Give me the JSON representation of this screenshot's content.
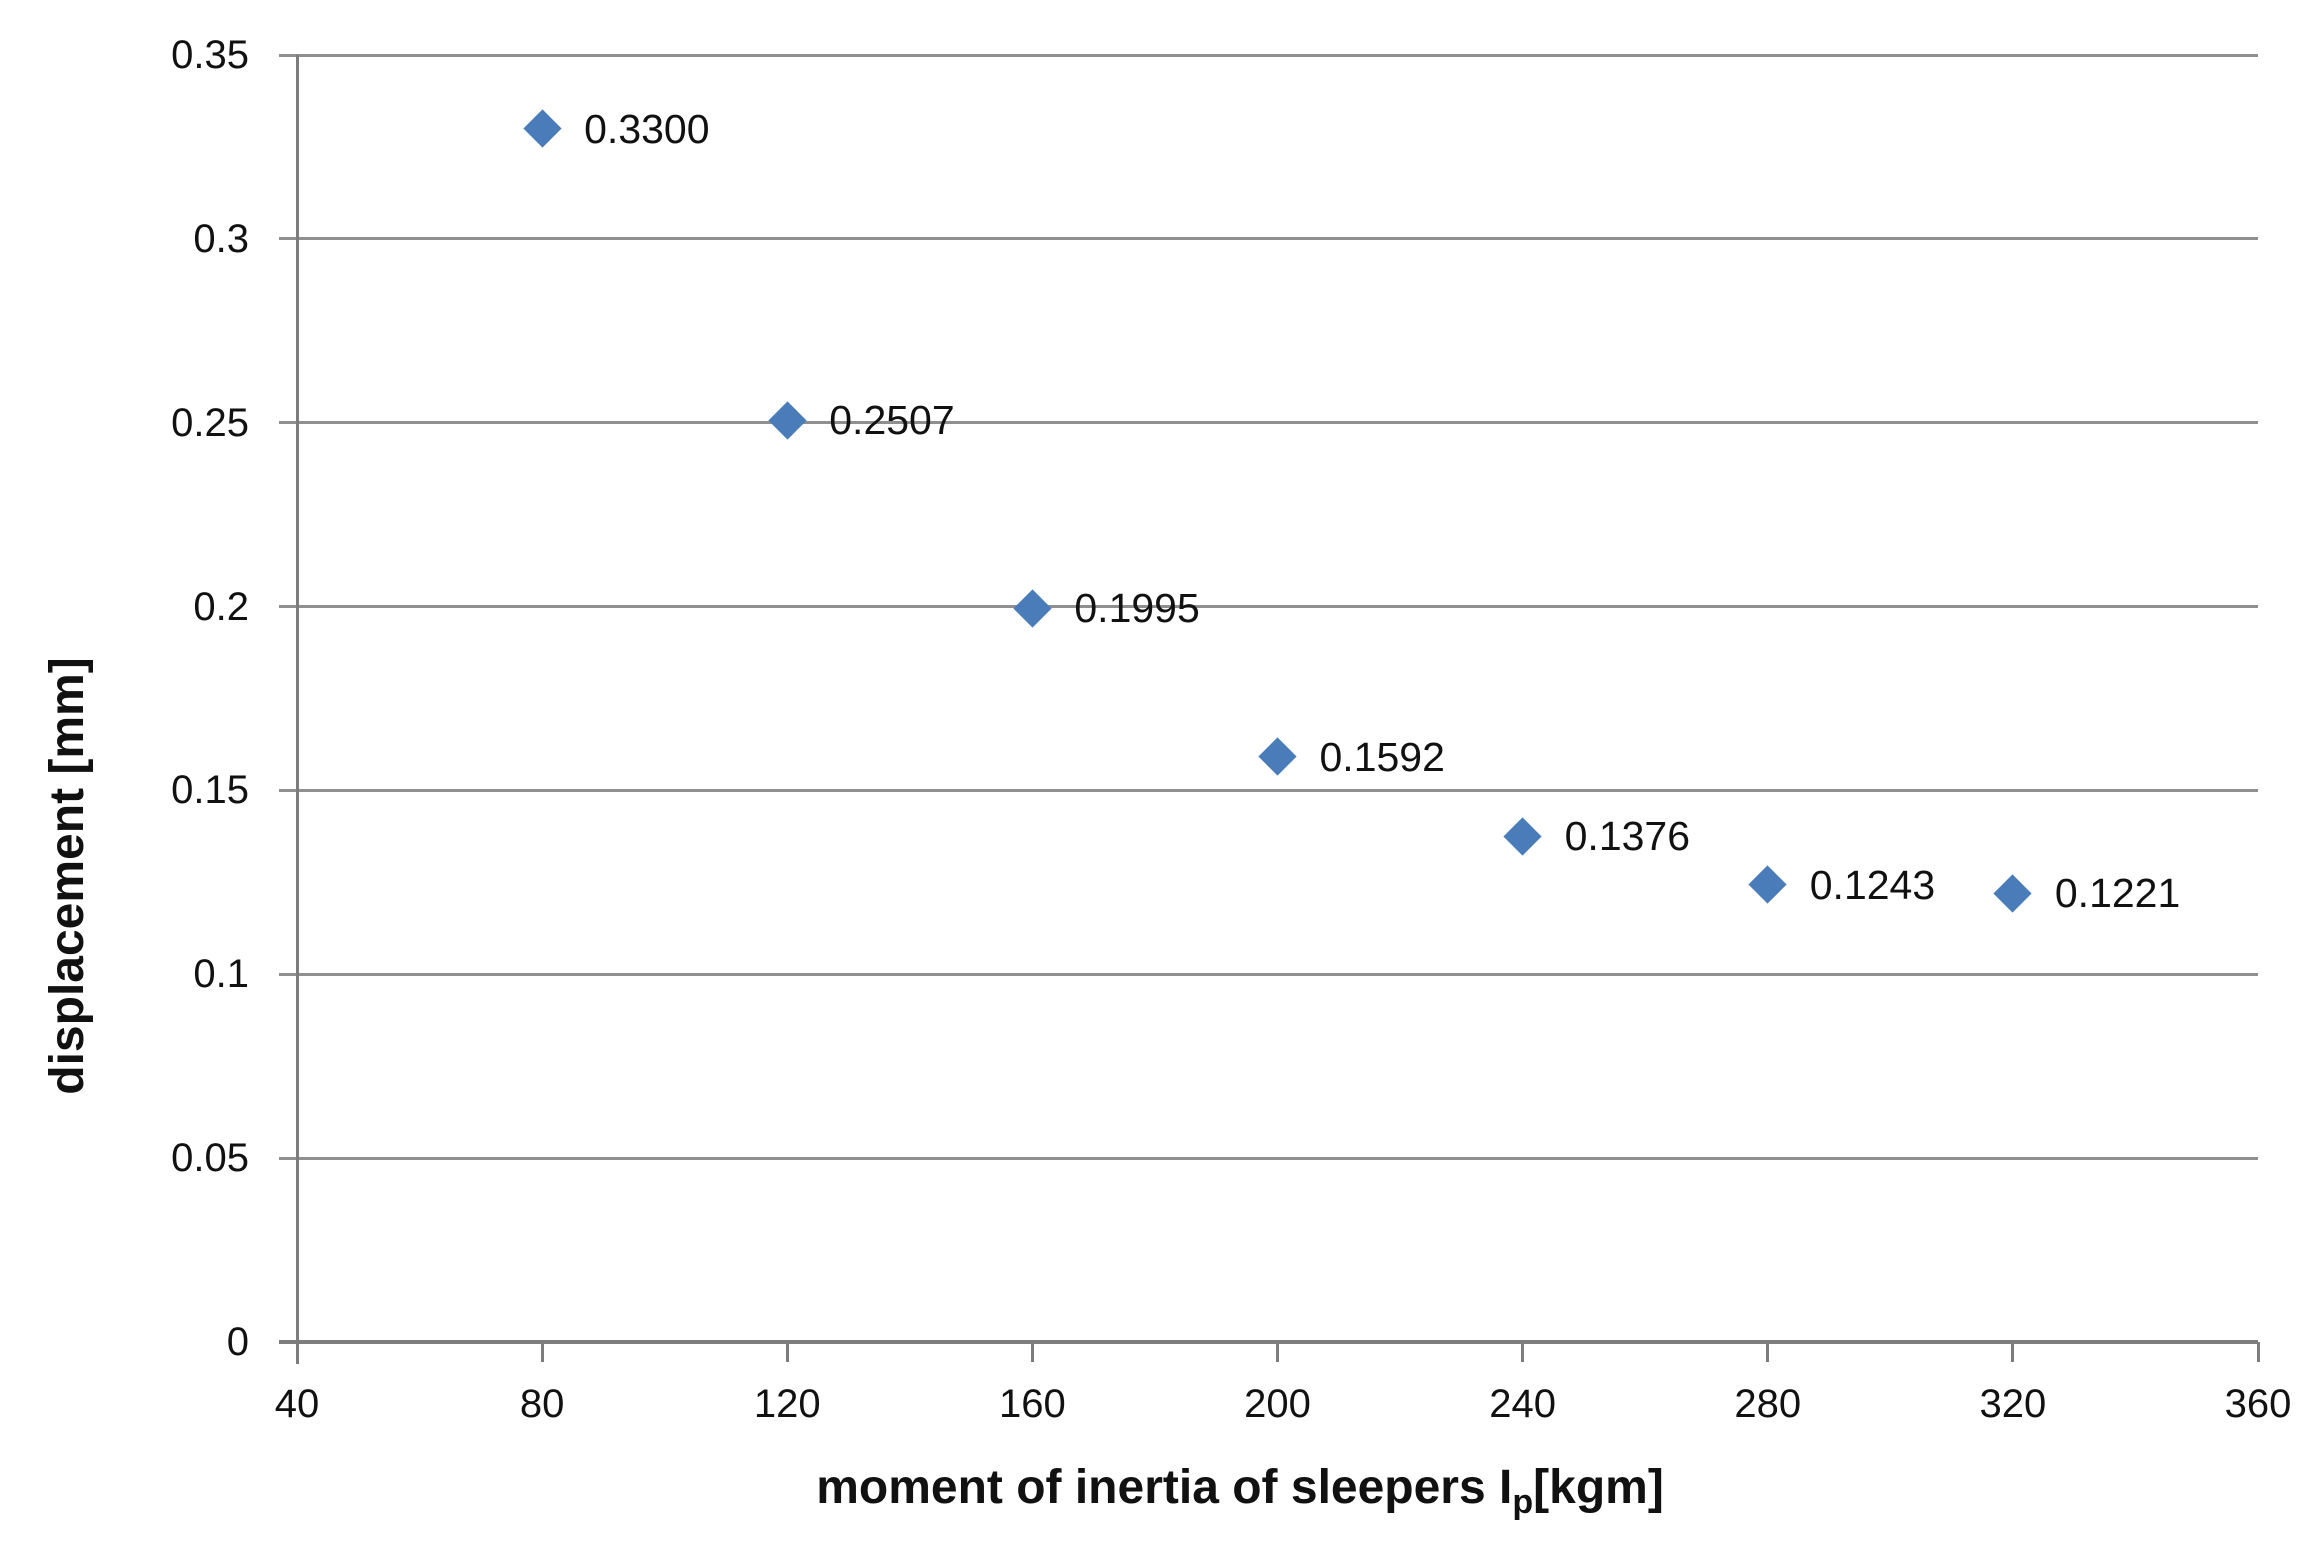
{
  "chart_data": {
    "type": "scatter",
    "title": "",
    "xlabel_pre": "moment of inertia of sleepers I",
    "xlabel_sub": "p",
    "xlabel_post": "[kgm]",
    "ylabel": "displacement [mm]",
    "xlim": [
      40,
      360
    ],
    "ylim": [
      0,
      0.35
    ],
    "xticks": [
      40,
      80,
      120,
      160,
      200,
      240,
      280,
      320,
      360
    ],
    "xtick_labels": [
      "40",
      "80",
      "120",
      "160",
      "200",
      "240",
      "280",
      "320",
      "360"
    ],
    "yticks": [
      0,
      0.05,
      0.1,
      0.15,
      0.2,
      0.25,
      0.3,
      0.35
    ],
    "ytick_labels": [
      "0",
      "0.05",
      "0.1",
      "0.15",
      "0.2",
      "0.25",
      "0.3",
      "0.35"
    ],
    "grid": "horizontal-on",
    "legend": "none",
    "series": [
      {
        "name": "displacement vs moment of inertia",
        "marker": "diamond",
        "marker_color": "#4a7cba",
        "points": [
          {
            "x": 80,
            "y": 0.33,
            "label": "0.3300"
          },
          {
            "x": 120,
            "y": 0.2507,
            "label": "0.2507"
          },
          {
            "x": 160,
            "y": 0.1995,
            "label": "0.1995"
          },
          {
            "x": 200,
            "y": 0.1592,
            "label": "0.1592"
          },
          {
            "x": 240,
            "y": 0.1376,
            "label": "0.1376"
          },
          {
            "x": 280,
            "y": 0.1243,
            "label": "0.1243"
          },
          {
            "x": 320,
            "y": 0.1221,
            "label": "0.1221"
          }
        ]
      }
    ],
    "colors": {
      "grid": "#8f8f8f",
      "axis": "#7d7d7d",
      "text": "#111111",
      "background": "#ffffff"
    }
  }
}
